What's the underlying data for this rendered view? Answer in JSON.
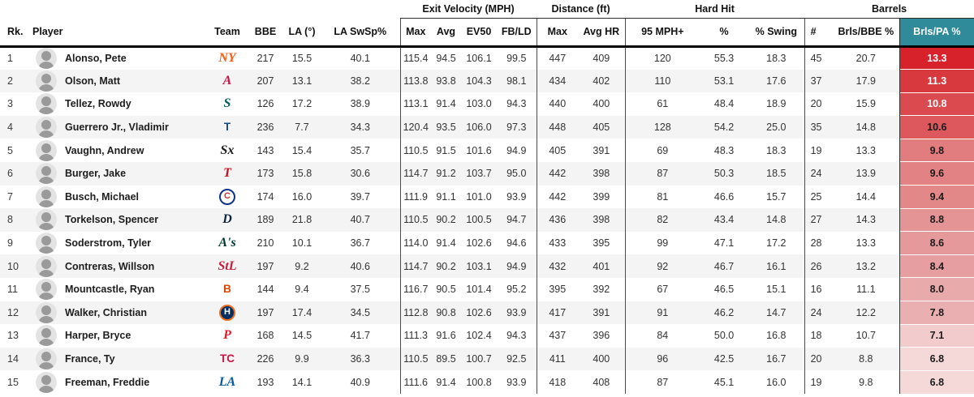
{
  "page": {
    "background": "#ffffff"
  },
  "table": {
    "accent_teal": "#2f8b99",
    "groups": [
      {
        "label": "",
        "span": 6,
        "bracket": false
      },
      {
        "label": "Exit Velocity (MPH)",
        "span": 4,
        "bracket": true
      },
      {
        "label": "Distance (ft)",
        "span": 2,
        "bracket": true
      },
      {
        "label": "Hard Hit",
        "span": 3,
        "bracket": true
      },
      {
        "label": "Barrels",
        "span": 3,
        "bracket": true
      }
    ],
    "columns": [
      {
        "key": "rk",
        "label": "Rk.",
        "align": "left"
      },
      {
        "key": "player",
        "label": "Player",
        "align": "left"
      },
      {
        "key": "team",
        "label": "Team",
        "align": "center"
      },
      {
        "key": "bbe",
        "label": "BBE",
        "align": "center"
      },
      {
        "key": "la",
        "label": "LA (°)",
        "align": "center"
      },
      {
        "key": "la_swsp",
        "label": "LA SwSp%",
        "align": "center"
      },
      {
        "key": "ev_max",
        "label": "Max",
        "align": "center",
        "group_start": true
      },
      {
        "key": "ev_avg",
        "label": "Avg",
        "align": "center"
      },
      {
        "key": "ev50",
        "label": "EV50",
        "align": "center"
      },
      {
        "key": "fb_ld",
        "label": "FB/LD",
        "align": "center"
      },
      {
        "key": "dist_max",
        "label": "Max",
        "align": "center",
        "group_start": true
      },
      {
        "key": "avg_hr",
        "label": "Avg HR",
        "align": "center"
      },
      {
        "key": "hh_95",
        "label": "95 MPH+",
        "align": "center",
        "group_start": true
      },
      {
        "key": "hh_pct",
        "label": "%",
        "align": "center"
      },
      {
        "key": "hh_swing",
        "label": "% Swing",
        "align": "center"
      },
      {
        "key": "brl_n",
        "label": "#",
        "align": "left",
        "group_start": true
      },
      {
        "key": "brls_bbe",
        "label": "Brls/BBE %",
        "align": "center"
      },
      {
        "key": "brls_pa",
        "label": "Brls/PA %",
        "align": "center",
        "highlight": true
      }
    ],
    "rows": [
      {
        "rk": "1",
        "player": "Alonso, Pete",
        "team": {
          "abbr": "NYM",
          "text": "NY",
          "color": "#ff5910",
          "style": "script"
        },
        "bbe": "217",
        "la": "15.5",
        "la_swsp": "40.1",
        "ev_max": "115.4",
        "ev_avg": "94.5",
        "ev50": "106.1",
        "fb_ld": "99.5",
        "dist_max": "447",
        "avg_hr": "409",
        "hh_95": "120",
        "hh_pct": "55.3",
        "hh_swing": "18.3",
        "brl_n": "45",
        "brls_bbe": "20.7",
        "brls_pa": "13.3",
        "heat": {
          "bg": "#d7222c",
          "fg": "#ffffff"
        }
      },
      {
        "rk": "2",
        "player": "Olson, Matt",
        "team": {
          "abbr": "ATL",
          "text": "A",
          "color": "#ce1141",
          "style": "script"
        },
        "bbe": "207",
        "la": "13.1",
        "la_swsp": "38.2",
        "ev_max": "113.8",
        "ev_avg": "93.8",
        "ev50": "104.3",
        "fb_ld": "98.1",
        "dist_max": "434",
        "avg_hr": "402",
        "hh_95": "110",
        "hh_pct": "53.1",
        "hh_swing": "17.6",
        "brl_n": "37",
        "brls_bbe": "17.9",
        "brls_pa": "11.3",
        "heat": {
          "bg": "#d8393f",
          "fg": "#ffffff"
        }
      },
      {
        "rk": "3",
        "player": "Tellez, Rowdy",
        "team": {
          "abbr": "SEA",
          "text": "S",
          "color": "#005c5c",
          "style": "script"
        },
        "bbe": "126",
        "la": "17.2",
        "la_swsp": "38.9",
        "ev_max": "113.1",
        "ev_avg": "91.4",
        "ev50": "103.0",
        "fb_ld": "94.3",
        "dist_max": "440",
        "avg_hr": "400",
        "hh_95": "61",
        "hh_pct": "48.4",
        "hh_swing": "18.9",
        "brl_n": "20",
        "brls_bbe": "15.9",
        "brls_pa": "10.8",
        "heat": {
          "bg": "#da4a4f",
          "fg": "#ffffff"
        }
      },
      {
        "rk": "4",
        "player": "Guerrero Jr., Vladimir",
        "team": {
          "abbr": "TOR",
          "text": "T",
          "color": "#134a8e",
          "style": "plain"
        },
        "bbe": "236",
        "la": "7.7",
        "la_swsp": "34.3",
        "ev_max": "120.4",
        "ev_avg": "93.5",
        "ev50": "106.0",
        "fb_ld": "97.3",
        "dist_max": "448",
        "avg_hr": "405",
        "hh_95": "128",
        "hh_pct": "54.2",
        "hh_swing": "25.0",
        "brl_n": "35",
        "brls_bbe": "14.8",
        "brls_pa": "10.6",
        "heat": {
          "bg": "#dc585c",
          "fg": "#1b1b1b"
        }
      },
      {
        "rk": "5",
        "player": "Vaughn, Andrew",
        "team": {
          "abbr": "CWS",
          "text": "Sx",
          "color": "#1a1a1a",
          "style": "script"
        },
        "bbe": "143",
        "la": "15.4",
        "la_swsp": "35.7",
        "ev_max": "110.5",
        "ev_avg": "91.5",
        "ev50": "101.6",
        "fb_ld": "94.9",
        "dist_max": "405",
        "avg_hr": "391",
        "hh_95": "69",
        "hh_pct": "48.3",
        "hh_swing": "18.3",
        "brl_n": "19",
        "brls_bbe": "13.3",
        "brls_pa": "9.8",
        "heat": {
          "bg": "#e17c7f",
          "fg": "#1b1b1b"
        }
      },
      {
        "rk": "6",
        "player": "Burger, Jake",
        "team": {
          "abbr": "TEX",
          "text": "T",
          "color": "#c0111f",
          "style": "script"
        },
        "bbe": "173",
        "la": "15.8",
        "la_swsp": "30.6",
        "ev_max": "114.7",
        "ev_avg": "91.2",
        "ev50": "103.7",
        "fb_ld": "95.0",
        "dist_max": "442",
        "avg_hr": "398",
        "hh_95": "87",
        "hh_pct": "50.3",
        "hh_swing": "18.5",
        "brl_n": "24",
        "brls_bbe": "13.9",
        "brls_pa": "9.6",
        "heat": {
          "bg": "#e28285",
          "fg": "#1b1b1b"
        }
      },
      {
        "rk": "7",
        "player": "Busch, Michael",
        "team": {
          "abbr": "CHC",
          "text": "C",
          "color": "#cc3433",
          "style": "badge",
          "bg": "#ffffff",
          "ring": "#0e3386"
        },
        "bbe": "174",
        "la": "16.0",
        "la_swsp": "39.7",
        "ev_max": "111.9",
        "ev_avg": "91.1",
        "ev50": "101.0",
        "fb_ld": "93.9",
        "dist_max": "442",
        "avg_hr": "399",
        "hh_95": "81",
        "hh_pct": "46.6",
        "hh_swing": "15.7",
        "brl_n": "25",
        "brls_bbe": "14.4",
        "brls_pa": "9.4",
        "heat": {
          "bg": "#e38889",
          "fg": "#1b1b1b"
        }
      },
      {
        "rk": "8",
        "player": "Torkelson, Spencer",
        "team": {
          "abbr": "DET",
          "text": "D",
          "color": "#0c2340",
          "style": "script"
        },
        "bbe": "189",
        "la": "21.8",
        "la_swsp": "40.7",
        "ev_max": "110.5",
        "ev_avg": "90.2",
        "ev50": "100.5",
        "fb_ld": "94.7",
        "dist_max": "436",
        "avg_hr": "398",
        "hh_95": "82",
        "hh_pct": "43.4",
        "hh_swing": "14.8",
        "brl_n": "27",
        "brls_bbe": "14.3",
        "brls_pa": "8.8",
        "heat": {
          "bg": "#e59496",
          "fg": "#1b1b1b"
        }
      },
      {
        "rk": "9",
        "player": "Soderstrom, Tyler",
        "team": {
          "abbr": "ATH",
          "text": "A's",
          "color": "#003831",
          "style": "script"
        },
        "bbe": "210",
        "la": "10.1",
        "la_swsp": "36.7",
        "ev_max": "114.0",
        "ev_avg": "91.4",
        "ev50": "102.6",
        "fb_ld": "94.6",
        "dist_max": "433",
        "avg_hr": "395",
        "hh_95": "99",
        "hh_pct": "47.1",
        "hh_swing": "17.2",
        "brl_n": "28",
        "brls_bbe": "13.3",
        "brls_pa": "8.6",
        "heat": {
          "bg": "#e6999b",
          "fg": "#1b1b1b"
        }
      },
      {
        "rk": "10",
        "player": "Contreras, Willson",
        "team": {
          "abbr": "STL",
          "text": "StL",
          "color": "#c41e3a",
          "style": "script"
        },
        "bbe": "197",
        "la": "9.2",
        "la_swsp": "40.6",
        "ev_max": "114.7",
        "ev_avg": "90.2",
        "ev50": "103.1",
        "fb_ld": "94.9",
        "dist_max": "432",
        "avg_hr": "401",
        "hh_95": "92",
        "hh_pct": "46.7",
        "hh_swing": "16.1",
        "brl_n": "26",
        "brls_bbe": "13.2",
        "brls_pa": "8.4",
        "heat": {
          "bg": "#e79ea0",
          "fg": "#1b1b1b"
        }
      },
      {
        "rk": "11",
        "player": "Mountcastle, Ryan",
        "team": {
          "abbr": "BAL",
          "text": "B",
          "color": "#df4601",
          "style": "plain"
        },
        "bbe": "144",
        "la": "9.4",
        "la_swsp": "37.5",
        "ev_max": "116.7",
        "ev_avg": "90.5",
        "ev50": "101.4",
        "fb_ld": "95.2",
        "dist_max": "395",
        "avg_hr": "392",
        "hh_95": "67",
        "hh_pct": "46.5",
        "hh_swing": "15.1",
        "brl_n": "16",
        "brls_bbe": "11.1",
        "brls_pa": "8.0",
        "heat": {
          "bg": "#e9aaab",
          "fg": "#1b1b1b"
        }
      },
      {
        "rk": "12",
        "player": "Walker, Christian",
        "team": {
          "abbr": "HOU",
          "text": "H",
          "color": "#ffffff",
          "style": "badge",
          "bg": "#002d62",
          "ring": "#eb6e1f"
        },
        "bbe": "197",
        "la": "17.4",
        "la_swsp": "34.5",
        "ev_max": "112.8",
        "ev_avg": "90.8",
        "ev50": "102.6",
        "fb_ld": "93.9",
        "dist_max": "417",
        "avg_hr": "391",
        "hh_95": "91",
        "hh_pct": "46.2",
        "hh_swing": "14.7",
        "brl_n": "24",
        "brls_bbe": "12.2",
        "brls_pa": "7.8",
        "heat": {
          "bg": "#eaafb0",
          "fg": "#1b1b1b"
        }
      },
      {
        "rk": "13",
        "player": "Harper, Bryce",
        "team": {
          "abbr": "PHI",
          "text": "P",
          "color": "#e81828",
          "style": "script"
        },
        "bbe": "168",
        "la": "14.5",
        "la_swsp": "41.7",
        "ev_max": "111.3",
        "ev_avg": "91.6",
        "ev50": "102.4",
        "fb_ld": "94.3",
        "dist_max": "437",
        "avg_hr": "396",
        "hh_95": "84",
        "hh_pct": "50.0",
        "hh_swing": "16.8",
        "brl_n": "18",
        "brls_bbe": "10.7",
        "brls_pa": "7.1",
        "heat": {
          "bg": "#f2cccc",
          "fg": "#1b1b1b"
        }
      },
      {
        "rk": "14",
        "player": "France, Ty",
        "team": {
          "abbr": "MIN",
          "text": "TC",
          "color": "#d31145",
          "style": "plain"
        },
        "bbe": "226",
        "la": "9.9",
        "la_swsp": "36.3",
        "ev_max": "110.5",
        "ev_avg": "89.5",
        "ev50": "100.7",
        "fb_ld": "92.5",
        "dist_max": "411",
        "avg_hr": "400",
        "hh_95": "96",
        "hh_pct": "42.5",
        "hh_swing": "16.7",
        "brl_n": "20",
        "brls_bbe": "8.8",
        "brls_pa": "6.8",
        "heat": {
          "bg": "#f5d8d8",
          "fg": "#1b1b1b"
        }
      },
      {
        "rk": "15",
        "player": "Freeman, Freddie",
        "team": {
          "abbr": "LAD",
          "text": "LA",
          "color": "#005a9c",
          "style": "script"
        },
        "bbe": "193",
        "la": "14.1",
        "la_swsp": "40.9",
        "ev_max": "111.6",
        "ev_avg": "91.4",
        "ev50": "100.8",
        "fb_ld": "93.9",
        "dist_max": "418",
        "avg_hr": "408",
        "hh_95": "87",
        "hh_pct": "45.1",
        "hh_swing": "16.0",
        "brl_n": "19",
        "brls_bbe": "9.8",
        "brls_pa": "6.8",
        "heat": {
          "bg": "#f5d9d9",
          "fg": "#1b1b1b"
        }
      }
    ]
  }
}
